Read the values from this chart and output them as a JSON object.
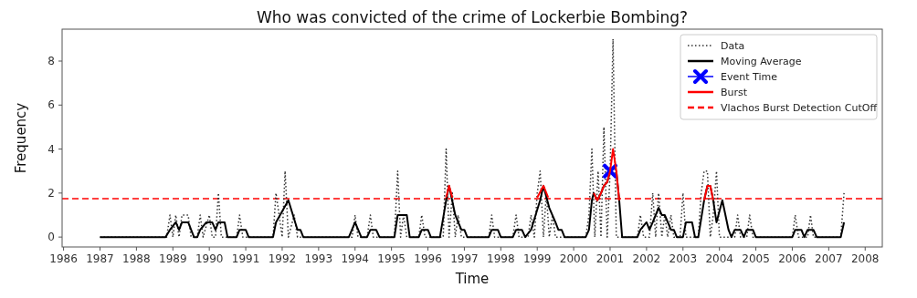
{
  "chart_data": {
    "type": "line",
    "title": "Who was convicted of the crime of Lockerbie Bombing?",
    "xlabel": "Time",
    "ylabel": "Frequency",
    "xlim": [
      1985.96,
      2008.47
    ],
    "ylim": [
      -0.45,
      9.45
    ],
    "xticks": [
      1986,
      1987,
      1988,
      1989,
      1990,
      1991,
      1992,
      1993,
      1994,
      1995,
      1996,
      1997,
      1998,
      1999,
      2000,
      2001,
      2002,
      2003,
      2004,
      2005,
      2006,
      2007,
      2008
    ],
    "yticks": [
      0,
      2,
      4,
      6,
      8
    ],
    "grid": false,
    "legend": "top right",
    "series": [
      {
        "name": "Data",
        "type": "line",
        "color": "#333333",
        "line_style": "dotted",
        "x": [
          1987,
          1988.83,
          1988.92,
          1989.0,
          1989.08,
          1989.17,
          1989.25,
          1989.42,
          1989.5,
          1989.67,
          1989.75,
          1989.83,
          1990.0,
          1990.08,
          1990.17,
          1990.25,
          1990.33,
          1990.75,
          1990.83,
          1990.92,
          1991.75,
          1991.83,
          1992.0,
          1992.08,
          1992.17,
          1992.33,
          1992.42,
          1993.92,
          1994.0,
          1994.08,
          1994.33,
          1994.42,
          1994.5,
          1995.08,
          1995.17,
          1995.25,
          1995.33,
          1995.42,
          1995.75,
          1995.83,
          1995.92,
          1996.42,
          1996.5,
          1996.58,
          1996.67,
          1996.75,
          1996.83,
          1996.92,
          1997.67,
          1997.75,
          1997.83,
          1998.33,
          1998.42,
          1998.5,
          1998.75,
          1998.83,
          1998.92,
          1999.0,
          1999.08,
          1999.17,
          1999.25,
          1999.33,
          1999.42,
          1999.5,
          2000.33,
          2000.42,
          2000.5,
          2000.58,
          2000.67,
          2000.75,
          2000.83,
          2000.92,
          2001.0,
          2001.08,
          2001.17,
          2001.75,
          2001.83,
          2001.92,
          2002.08,
          2002.17,
          2002.25,
          2002.33,
          2002.42,
          2002.5,
          2002.58,
          2002.67,
          2002.75,
          2002.92,
          2003.0,
          2003.08,
          2003.42,
          2003.5,
          2003.58,
          2003.67,
          2003.75,
          2003.83,
          2003.92,
          2004.0,
          2004.42,
          2004.5,
          2004.58,
          2004.75,
          2004.83,
          2004.92,
          2006.0,
          2006.08,
          2006.17,
          2006.42,
          2006.5,
          2006.58,
          2007.33,
          2007.42
        ],
        "values": [
          0,
          0,
          1,
          0,
          1,
          0,
          1,
          1,
          0,
          0,
          1,
          0,
          1,
          0,
          0,
          2,
          0,
          0,
          1,
          0,
          0,
          2,
          0,
          3,
          0,
          1,
          0,
          0,
          1,
          0,
          0,
          1,
          0,
          0,
          3,
          0,
          1,
          0,
          0,
          1,
          0,
          0,
          4,
          0,
          2,
          0,
          1,
          0,
          0,
          1,
          0,
          0,
          1,
          0,
          0,
          1,
          0,
          2,
          3,
          0,
          2,
          0,
          1,
          0,
          0,
          1,
          4,
          0,
          3,
          0,
          5,
          0,
          3,
          9,
          0,
          0,
          1,
          0,
          0,
          2,
          0,
          2,
          0,
          1,
          0,
          1,
          0,
          0,
          2,
          0,
          0,
          2,
          3,
          3,
          0,
          1,
          3,
          0,
          0,
          1,
          0,
          0,
          1,
          0,
          0,
          1,
          0,
          0,
          1,
          0,
          0,
          2
        ]
      },
      {
        "name": "Moving Average",
        "type": "line",
        "color": "#000000",
        "line_style": "solid",
        "x": [
          1987,
          1988.8,
          1988.92,
          1989.08,
          1989.17,
          1989.25,
          1989.42,
          1989.58,
          1989.67,
          1989.75,
          1989.92,
          1990.08,
          1990.17,
          1990.25,
          1990.42,
          1990.5,
          1990.75,
          1990.83,
          1991.0,
          1991.08,
          1991.75,
          1991.83,
          1992.17,
          1992.42,
          1992.5,
          1992.58,
          1993.83,
          1994.0,
          1994.17,
          1994.33,
          1994.42,
          1994.58,
          1994.67,
          1995.08,
          1995.17,
          1995.42,
          1995.5,
          1995.75,
          1995.83,
          1996.0,
          1996.08,
          1996.33,
          1996.5,
          1996.58,
          1996.75,
          1996.83,
          1996.92,
          1997.0,
          1997.08,
          1997.67,
          1997.75,
          1997.92,
          1998.0,
          1998.33,
          1998.42,
          1998.58,
          1998.67,
          1998.83,
          1999.08,
          1999.17,
          1999.33,
          1999.5,
          1999.58,
          1999.67,
          1999.75,
          2000.33,
          2000.42,
          2000.5,
          2000.55,
          2000.65,
          2000.75,
          2000.83,
          2000.92,
          2001.0,
          2001.08,
          2001.17,
          2001.25,
          2001.33,
          2001.75,
          2001.83,
          2002.0,
          2002.08,
          2002.17,
          2002.33,
          2002.42,
          2002.5,
          2002.67,
          2002.75,
          2002.83,
          2003.0,
          2003.08,
          2003.25,
          2003.33,
          2003.42,
          2003.58,
          2003.67,
          2003.75,
          2003.83,
          2003.92,
          2004.08,
          2004.25,
          2004.33,
          2004.42,
          2004.58,
          2004.67,
          2004.75,
          2004.92,
          2005.0,
          2006.0,
          2006.08,
          2006.25,
          2006.33,
          2006.42,
          2006.58,
          2006.67,
          2007.33,
          2007.42
        ],
        "values": [
          0,
          0,
          0.33,
          0.67,
          0.33,
          0.67,
          0.67,
          0,
          0,
          0.33,
          0.67,
          0.67,
          0.33,
          0.67,
          0.67,
          0,
          0,
          0.33,
          0.33,
          0,
          0,
          0.67,
          1.67,
          0.33,
          0.33,
          0,
          0,
          0.67,
          0,
          0,
          0.33,
          0.33,
          0,
          0,
          1,
          1,
          0,
          0,
          0.33,
          0.33,
          0,
          0,
          1.67,
          2.33,
          1,
          0.67,
          0.33,
          0.33,
          0,
          0,
          0.33,
          0.33,
          0,
          0,
          0.33,
          0.33,
          0,
          0.33,
          1.67,
          2.33,
          1.33,
          0.67,
          0.33,
          0.33,
          0,
          0,
          0.33,
          1.67,
          2,
          1.67,
          2,
          2.33,
          2.5,
          3,
          null,
          3,
          1.67,
          0,
          0,
          0.33,
          0.67,
          0.33,
          0.67,
          1.33,
          1,
          1,
          0.33,
          0.33,
          0,
          0,
          0.67,
          0.67,
          0,
          0,
          1.67,
          2.33,
          2.33,
          1.67,
          0.67,
          1.67,
          0.33,
          0,
          0.33,
          0.33,
          0,
          0.33,
          0.33,
          0,
          0,
          0.33,
          0.33,
          0,
          0.33,
          0.33,
          0,
          0,
          0.67
        ]
      },
      {
        "name": "Event Time",
        "type": "scatter",
        "color": "#0000ff",
        "marker": "cross",
        "x": [
          2001.0
        ],
        "values": [
          3.0
        ]
      },
      {
        "name": "Burst",
        "type": "line",
        "color": "#ff0000",
        "line_style": "solid",
        "x": [
          1996.5,
          1996.58,
          1996.67,
          1996.7,
          1999.0,
          1999.17,
          1999.3,
          1999.35,
          2000.55,
          2000.65,
          2000.75,
          2000.83,
          2000.92,
          2001.0,
          2001.08,
          2001.17,
          2001.25,
          2001.3,
          2003.58,
          2003.67,
          2003.75,
          2003.83
        ],
        "values": [
          1.8,
          2.33,
          1.8,
          null,
          1.8,
          2.33,
          1.8,
          null,
          2.0,
          1.67,
          2.0,
          2.33,
          2.5,
          3.0,
          4.0,
          3.0,
          1.67,
          null,
          1.67,
          2.33,
          2.33,
          1.67
        ]
      }
    ],
    "ref_lines": [
      {
        "axis": "y",
        "value": 1.75,
        "label": "Vlachos Burst Detection CutOff",
        "color": "#ff0000",
        "line_style": "dashed"
      }
    ]
  }
}
